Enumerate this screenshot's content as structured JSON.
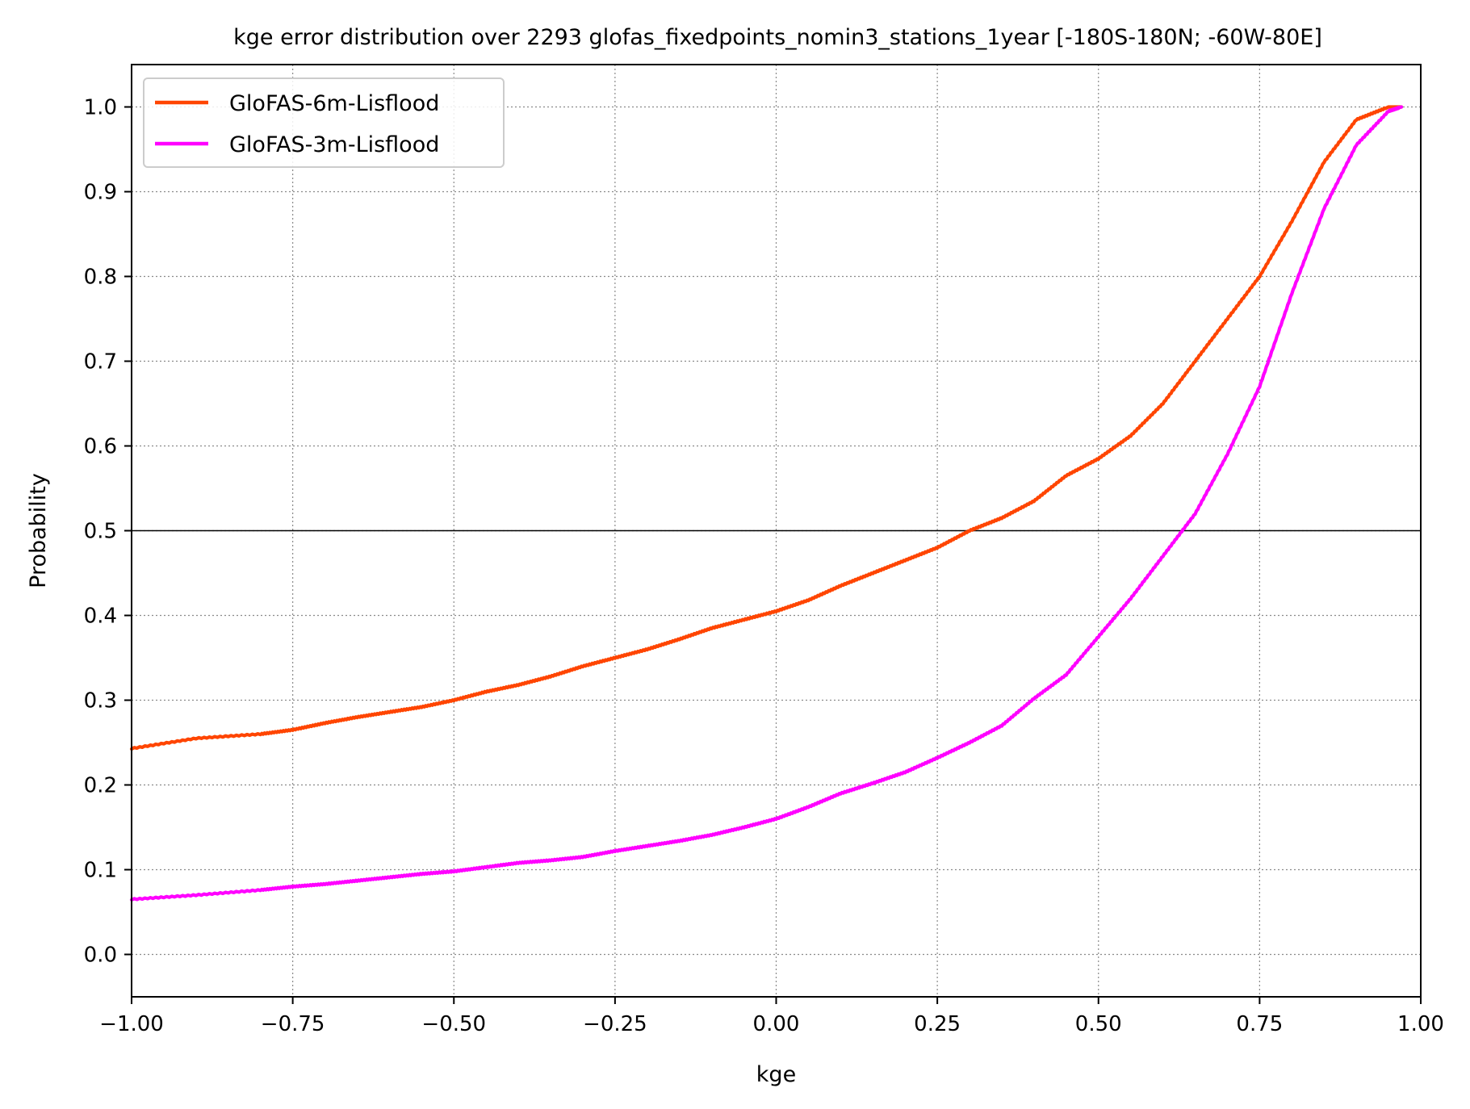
{
  "chart_data": {
    "type": "line",
    "title": "kge error distribution over 2293 glofas_fixedpoints_nomin3_stations_1year [-180S-180N; -60W-80E]",
    "xlabel": "kge",
    "ylabel": "Probability",
    "xlim": [
      -1.0,
      1.0
    ],
    "ylim": [
      -0.05,
      1.05
    ],
    "x_ticks": [
      -1.0,
      -0.75,
      -0.5,
      -0.25,
      0.0,
      0.25,
      0.5,
      0.75,
      1.0
    ],
    "x_tick_labels": [
      "−1.00",
      "−0.75",
      "−0.50",
      "−0.25",
      "0.00",
      "0.25",
      "0.50",
      "0.75",
      "1.00"
    ],
    "y_ticks": [
      0.0,
      0.1,
      0.2,
      0.3,
      0.4,
      0.5,
      0.6,
      0.7,
      0.8,
      0.9,
      1.0
    ],
    "y_tick_labels": [
      "0.0",
      "0.1",
      "0.2",
      "0.3",
      "0.4",
      "0.5",
      "0.6",
      "0.7",
      "0.8",
      "0.9",
      "1.0"
    ],
    "grid": true,
    "reference_line_y": 0.5,
    "legend_position": "top-left",
    "series": [
      {
        "name": "GloFAS-6m-Lisflood",
        "color": "#ff4500",
        "x": [
          -1.0,
          -0.9,
          -0.8,
          -0.75,
          -0.7,
          -0.65,
          -0.6,
          -0.55,
          -0.5,
          -0.45,
          -0.4,
          -0.35,
          -0.3,
          -0.25,
          -0.2,
          -0.15,
          -0.1,
          -0.05,
          0.0,
          0.05,
          0.1,
          0.15,
          0.2,
          0.25,
          0.3,
          0.35,
          0.4,
          0.45,
          0.5,
          0.55,
          0.6,
          0.65,
          0.7,
          0.75,
          0.8,
          0.85,
          0.9,
          0.95,
          0.97
        ],
        "y": [
          0.243,
          0.255,
          0.26,
          0.265,
          0.273,
          0.28,
          0.286,
          0.292,
          0.3,
          0.31,
          0.318,
          0.328,
          0.34,
          0.35,
          0.36,
          0.372,
          0.385,
          0.395,
          0.405,
          0.418,
          0.435,
          0.45,
          0.465,
          0.48,
          0.5,
          0.515,
          0.535,
          0.565,
          0.585,
          0.612,
          0.65,
          0.7,
          0.75,
          0.8,
          0.865,
          0.935,
          0.985,
          1.0,
          1.0
        ]
      },
      {
        "name": "GloFAS-3m-Lisflood",
        "color": "#ff00ff",
        "x": [
          -1.0,
          -0.9,
          -0.8,
          -0.75,
          -0.7,
          -0.65,
          -0.6,
          -0.55,
          -0.5,
          -0.45,
          -0.4,
          -0.35,
          -0.3,
          -0.25,
          -0.2,
          -0.15,
          -0.1,
          -0.05,
          0.0,
          0.05,
          0.1,
          0.15,
          0.2,
          0.25,
          0.3,
          0.35,
          0.4,
          0.45,
          0.5,
          0.55,
          0.6,
          0.65,
          0.7,
          0.75,
          0.8,
          0.85,
          0.9,
          0.95,
          0.97
        ],
        "y": [
          0.065,
          0.07,
          0.076,
          0.08,
          0.083,
          0.087,
          0.091,
          0.095,
          0.098,
          0.103,
          0.108,
          0.111,
          0.115,
          0.122,
          0.128,
          0.134,
          0.141,
          0.15,
          0.16,
          0.174,
          0.19,
          0.202,
          0.215,
          0.232,
          0.25,
          0.27,
          0.302,
          0.33,
          0.375,
          0.42,
          0.47,
          0.52,
          0.59,
          0.67,
          0.78,
          0.88,
          0.955,
          0.995,
          1.0
        ]
      }
    ]
  }
}
